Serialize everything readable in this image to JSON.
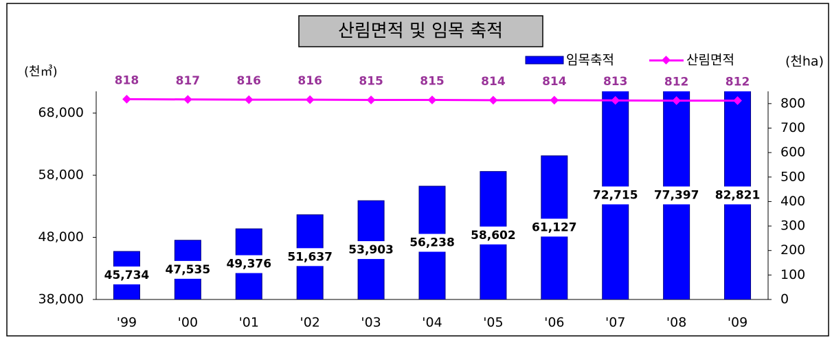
{
  "chart_data": {
    "type": "bar",
    "title": "산림면적 및 임목 축적",
    "y_label": "(천㎥)",
    "y2_label": "(천ha)",
    "categories": [
      "'99",
      "'00",
      "'01",
      "'02",
      "'03",
      "'04",
      "'05",
      "'06",
      "'07",
      "'08",
      "'09"
    ],
    "series": [
      {
        "name": "임목축적",
        "type": "bar",
        "color": "#0000ff",
        "values": [
          45734,
          47535,
          49376,
          51637,
          53903,
          56238,
          58602,
          61127,
          72715,
          77397,
          82821
        ],
        "value_labels": [
          "45,734",
          "47,535",
          "49,376",
          "51,637",
          "53,903",
          "56,238",
          "58,602",
          "61,127",
          "72,715",
          "77,397",
          "82,821"
        ]
      },
      {
        "name": "산림면적",
        "type": "line",
        "axis": "y2",
        "color": "#ff00ff",
        "label_color": "#993399",
        "values": [
          818,
          817,
          816,
          816,
          815,
          815,
          814,
          814,
          813,
          812,
          812
        ]
      }
    ],
    "ylim": [
      38000,
      71500
    ],
    "yticks": [
      {
        "value": 38000,
        "label": "38,000"
      },
      {
        "value": 48000,
        "label": "48,000"
      },
      {
        "value": 58000,
        "label": "58,000"
      },
      {
        "value": 68000,
        "label": "68,000"
      }
    ],
    "y2lim": [
      0,
      850
    ],
    "y2ticks": [
      0,
      100,
      200,
      300,
      400,
      500,
      600,
      700,
      800
    ],
    "legend": "top-right"
  }
}
